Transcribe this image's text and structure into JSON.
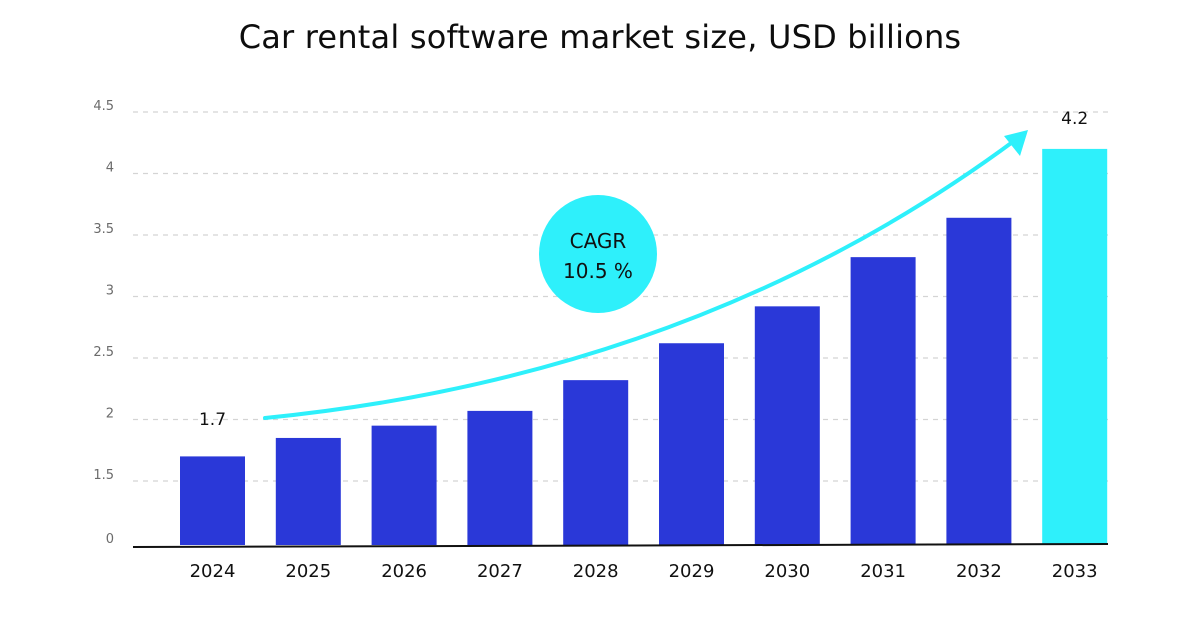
{
  "chart_data": {
    "type": "bar",
    "title": "Car rental software market size, USD billions",
    "xlabel": "",
    "ylabel": "",
    "categories": [
      "2024",
      "2025",
      "2026",
      "2027",
      "2028",
      "2029",
      "2030",
      "2031",
      "2032",
      "2033"
    ],
    "values": [
      1.7,
      1.85,
      1.95,
      2.07,
      2.32,
      2.62,
      2.92,
      3.32,
      3.64,
      4.2
    ],
    "y_ticks": [
      "0",
      "1.5",
      "2",
      "2.5",
      "3",
      "3.5",
      "4",
      "4.5"
    ],
    "data_labels": {
      "first": "1.7",
      "last": "4.2"
    },
    "annotation": {
      "line1": "CAGR",
      "line2": "10.5 %"
    },
    "grid": "horizontal-dashed",
    "legend": "none",
    "colors": {
      "bar": "#2a38d8",
      "highlight_bar": "#2ef0fb",
      "arrow": "#2ef0fb",
      "circle": "#2ef0fb",
      "grid": "#d4d4d4"
    }
  }
}
